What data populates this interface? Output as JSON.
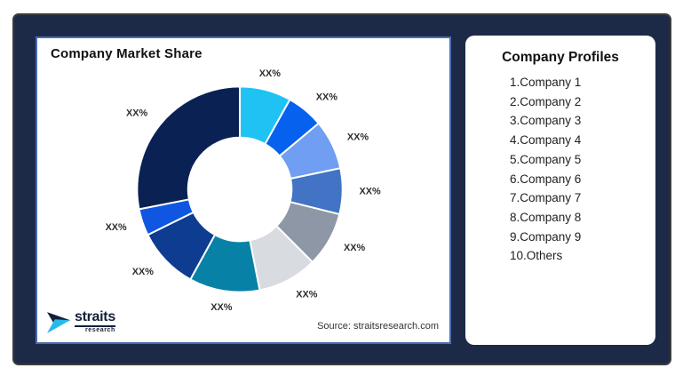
{
  "chart_panel": {
    "title": "Company Market Share",
    "source": "Source: straitsresearch.com"
  },
  "profiles_panel": {
    "title": "Company Profiles",
    "items": [
      "1.Company 1",
      "2.Company 2",
      "3.Company 3",
      "4.Company 4",
      "5.Company 5",
      "6.Company 6",
      "7.Company 7",
      "8.Company 8",
      "9.Company 9",
      "10.Others"
    ]
  },
  "logo": {
    "brand": "straits",
    "subtext": "research",
    "navy": "#13203C",
    "cyan": "#29B9E9"
  },
  "colors": {
    "frame_background": "#1D2A47",
    "frame_border": "#3C3C3C",
    "chart_panel_border": "#4A6BB0",
    "slice_label": "#2E2E2E",
    "slice_divider": "#FFFFFF"
  },
  "chart_data": {
    "type": "pie",
    "variant": "donut",
    "title": "Company Market Share",
    "start_angle_deg": 0,
    "direction": "clockwise",
    "inner_radius_ratio": 0.5,
    "values_shown_as": "XX% placeholder labels",
    "slices": [
      {
        "label": "XX%",
        "estimated_pct": 8.1,
        "color": "#1FC3F3"
      },
      {
        "label": "XX%",
        "estimated_pct": 5.8,
        "color": "#0761EF"
      },
      {
        "label": "XX%",
        "estimated_pct": 7.8,
        "color": "#6F9EF2"
      },
      {
        "label": "XX%",
        "estimated_pct": 7.2,
        "color": "#4273C4"
      },
      {
        "label": "XX%",
        "estimated_pct": 8.6,
        "color": "#8E97A6"
      },
      {
        "label": "XX%",
        "estimated_pct": 9.4,
        "color": "#D8DBE0"
      },
      {
        "label": "XX%",
        "estimated_pct": 11.1,
        "color": "#0881A6"
      },
      {
        "label": "XX%",
        "estimated_pct": 9.7,
        "color": "#0D3C90"
      },
      {
        "label": "XX%",
        "estimated_pct": 4.2,
        "color": "#0F57E2"
      },
      {
        "label": "XX%",
        "estimated_pct": 28.1,
        "color": "#0A2153"
      }
    ]
  }
}
